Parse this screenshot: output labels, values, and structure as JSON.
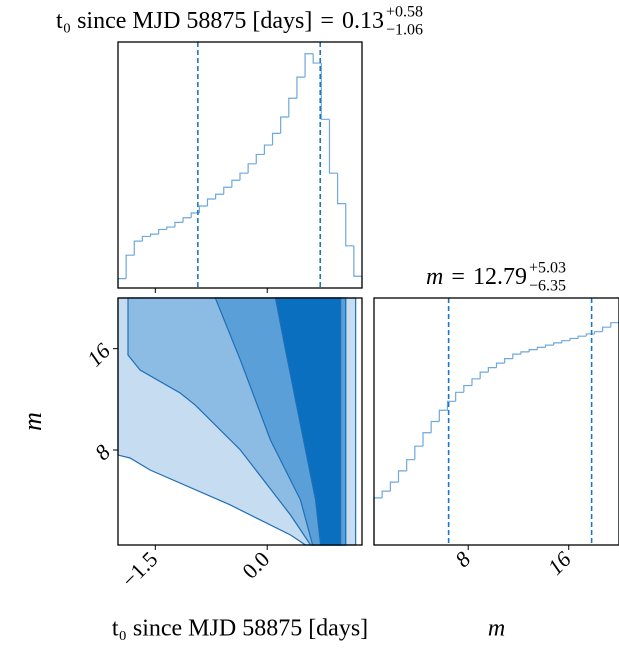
{
  "chart_data": [
    {
      "type": "histogram",
      "title": "t₀ since MJD 58875 [days]",
      "relation": "=",
      "median": 0.13,
      "err_plus": {
        "value": 0.58,
        "label": "+0.58"
      },
      "err_minus": {
        "value": 1.06,
        "label": "−1.06"
      },
      "color": "#6fa8dc",
      "quantile_color": "#1f77c4",
      "bins": [
        -2.0,
        -1.891,
        -1.782,
        -1.673,
        -1.564,
        -1.455,
        -1.346,
        -1.237,
        -1.128,
        -1.019,
        -0.91,
        -0.801,
        -0.692,
        -0.583,
        -0.474,
        -0.365,
        -0.256,
        -0.147,
        -0.038,
        0.071,
        0.18,
        0.289,
        0.398,
        0.507,
        0.616,
        0.725,
        0.834,
        0.943,
        1.052,
        1.161,
        1.27
      ],
      "values": [
        0.04,
        0.14,
        0.2,
        0.22,
        0.23,
        0.25,
        0.26,
        0.28,
        0.3,
        0.32,
        0.35,
        0.38,
        0.4,
        0.43,
        0.46,
        0.49,
        0.53,
        0.57,
        0.61,
        0.66,
        0.73,
        0.81,
        0.9,
        1.0,
        0.96,
        0.72,
        0.49,
        0.36,
        0.18,
        0.05
      ],
      "xlim": [
        -2.0,
        1.27
      ],
      "ylim": [
        0,
        1.05
      ]
    },
    {
      "type": "contour",
      "x_label": "t₀ since MJD 58875 [days]",
      "y_label": "m",
      "xlim": [
        -2.0,
        1.27
      ],
      "ylim": [
        0.5,
        20
      ],
      "xticks": [
        {
          "value": -1.5,
          "label": "−1.5"
        },
        {
          "value": 0,
          "label": "0.0"
        }
      ],
      "yticks": [
        8,
        16
      ],
      "line_color": "#1f6fb5",
      "levels": [
        {
          "color": "#c6dcf0",
          "x": [
            -2.0,
            1.185,
            1.185,
            0.513,
            0.312,
            -0.495,
            -1.57,
            -1.839,
            -2.0
          ],
          "y": [
            20,
            20,
            0.5,
            0.5,
            1.29,
            3.66,
            6.42,
            7.37,
            7.6
          ]
        },
        {
          "color": "#8cbbe3",
          "x": [
            -1.866,
            1.051,
            1.051,
            0.581,
            0.312,
            -0.36,
            -0.965,
            -1.167,
            -1.704,
            -1.866
          ],
          "y": [
            20,
            20,
            0.5,
            0.5,
            2.87,
            8.0,
            11.55,
            12.5,
            14.31,
            15.5
          ]
        },
        {
          "color": "#5a9fd8",
          "x": [
            -0.696,
            1.051,
            1.051,
            0.608,
            0.446,
            0.043,
            -0.36
          ],
          "y": [
            20,
            20,
            0.5,
            0.5,
            4.05,
            8.79,
            15.1
          ]
        },
        {
          "color": "#0b6fc0",
          "x": [
            0.11,
            0.984,
            0.984,
            0.715,
            0.648,
            0.513,
            0.379,
            0.245
          ],
          "y": [
            20,
            20,
            0.5,
            0.5,
            4.05,
            8.0,
            11.94,
            15.89
          ]
        }
      ]
    },
    {
      "type": "histogram",
      "title": "m",
      "relation": "=",
      "median": 12.79,
      "err_plus": {
        "value": 5.03,
        "label": "+5.03"
      },
      "err_minus": {
        "value": 6.35,
        "label": "−6.35"
      },
      "color": "#6fa8dc",
      "quantile_color": "#1f77c4",
      "bins": [
        0.5,
        1.15,
        1.8,
        2.45,
        3.1,
        3.75,
        4.4,
        5.05,
        5.7,
        6.35,
        7.0,
        7.65,
        8.3,
        8.95,
        9.6,
        10.25,
        10.9,
        11.55,
        12.2,
        12.85,
        13.5,
        14.15,
        14.8,
        15.45,
        16.1,
        16.75,
        17.4,
        18.05,
        18.7,
        19.35,
        20.0
      ],
      "values": [
        0.21,
        0.24,
        0.28,
        0.33,
        0.38,
        0.44,
        0.5,
        0.55,
        0.6,
        0.64,
        0.68,
        0.71,
        0.74,
        0.77,
        0.79,
        0.81,
        0.83,
        0.85,
        0.86,
        0.87,
        0.88,
        0.89,
        0.9,
        0.91,
        0.92,
        0.93,
        0.94,
        0.95,
        0.97,
        0.99
      ],
      "xlim": [
        0.5,
        20
      ],
      "ylim": [
        0,
        1.1
      ],
      "xticks": [
        8,
        16
      ],
      "x_label": "m"
    }
  ]
}
